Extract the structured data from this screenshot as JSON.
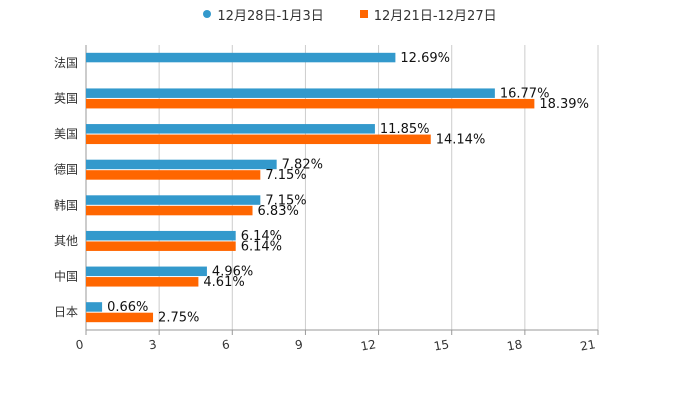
{
  "chart_data": {
    "type": "bar",
    "orientation": "horizontal",
    "categories": [
      "法国",
      "英国",
      "美国",
      "德国",
      "韩国",
      "其他",
      "中国",
      "日本"
    ],
    "series": [
      {
        "name": "12月28日-1月3日",
        "color": "#3399cc",
        "marker": "circle",
        "values": [
          12.69,
          16.77,
          11.85,
          7.82,
          7.15,
          6.14,
          4.96,
          0.66
        ],
        "labels": [
          "12.69%",
          "16.77%",
          "11.85%",
          "7.82%",
          "7.15%",
          "6.14%",
          "4.96%",
          "0.66%"
        ]
      },
      {
        "name": "12月21日-12月27日",
        "color": "#ff6600",
        "marker": "square",
        "values": [
          null,
          18.39,
          14.14,
          7.15,
          6.83,
          6.14,
          4.61,
          2.75
        ],
        "labels": [
          "",
          "18.39%",
          "14.14%",
          "7.15%",
          "6.83%",
          "6.14%",
          "4.61%",
          "2.75%"
        ]
      }
    ],
    "xlim": [
      0,
      21
    ],
    "xticks": [
      "0",
      "3",
      "6",
      "9",
      "12",
      "15",
      "18",
      "21"
    ],
    "grid": true,
    "legend_position": "top-center"
  }
}
